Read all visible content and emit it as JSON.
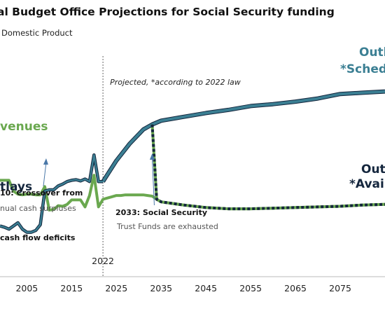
{
  "chart_data": {
    "type": "line",
    "title": "al Budget Office Projections for Social Security funding",
    "subtitle": "Domestic Product",
    "xlim": [
      1999,
      2085
    ],
    "ylim": [
      3.5,
      7.2
    ],
    "x_ticks": [
      "2005",
      "2015",
      "2025",
      "2035",
      "2045",
      "2055",
      "2065",
      "2075"
    ],
    "divider": {
      "x": 2022,
      "label": "2022",
      "note": "Projected, *according to 2022 law"
    },
    "series": [
      {
        "name": "venues",
        "color": "#6aa84f",
        "x": [
          1999,
          2000,
          2001,
          2002,
          2003,
          2004,
          2005,
          2006,
          2007,
          2008,
          2009,
          2010,
          2011,
          2012,
          2013,
          2014,
          2015,
          2016,
          2017,
          2018,
          2019,
          2020,
          2021,
          2022,
          2023,
          2024,
          2025,
          2026,
          2027,
          2028,
          2029,
          2030,
          2031,
          2032,
          2033,
          2034,
          2035,
          2040,
          2045,
          2050,
          2055,
          2060,
          2065,
          2070,
          2075,
          2080,
          2085
        ],
        "values": [
          5.02,
          5.02,
          5.02,
          4.85,
          4.8,
          4.79,
          4.8,
          4.8,
          4.79,
          4.79,
          4.92,
          4.55,
          4.56,
          4.62,
          4.61,
          4.64,
          4.71,
          4.71,
          4.71,
          4.6,
          4.78,
          5.1,
          4.6,
          4.72,
          4.74,
          4.76,
          4.78,
          4.78,
          4.79,
          4.79,
          4.79,
          4.79,
          4.79,
          4.78,
          4.77,
          4.72,
          4.68,
          4.63,
          4.59,
          4.57,
          4.57,
          4.58,
          4.59,
          4.6,
          4.61,
          4.63,
          4.64
        ]
      },
      {
        "name": "tlays",
        "color": "#3b7f93",
        "x": [
          1999,
          2000,
          2001,
          2002,
          2003,
          2004,
          2005,
          2006,
          2007,
          2008,
          2009,
          2010,
          2011,
          2012,
          2013,
          2014,
          2015,
          2016,
          2017,
          2018,
          2019,
          2020,
          2021,
          2022
        ],
        "values": [
          4.3,
          4.28,
          4.25,
          4.3,
          4.35,
          4.25,
          4.2,
          4.2,
          4.23,
          4.32,
          4.85,
          4.87,
          4.87,
          4.93,
          4.96,
          5.0,
          5.02,
          5.03,
          5.01,
          5.04,
          5.0,
          5.42,
          5.0,
          5.0
        ]
      },
      {
        "name": "Outla",
        "label_suffix": "*Schedu",
        "color": "#3b7f93",
        "x": [
          2022,
          2025,
          2028,
          2031,
          2033,
          2035,
          2040,
          2045,
          2050,
          2055,
          2060,
          2065,
          2070,
          2075,
          2080,
          2085
        ],
        "values": [
          5.0,
          5.33,
          5.6,
          5.82,
          5.9,
          5.96,
          6.02,
          6.08,
          6.13,
          6.19,
          6.22,
          6.26,
          6.31,
          6.38,
          6.4,
          6.42
        ]
      },
      {
        "name": "Outl",
        "label_suffix": "*Availa",
        "color": "#14263d",
        "x": [
          2033,
          2033.6,
          2034,
          2035,
          2040,
          2045,
          2050,
          2055,
          2060,
          2065,
          2070,
          2075,
          2080,
          2085
        ],
        "values": [
          5.9,
          5.2,
          4.72,
          4.68,
          4.63,
          4.59,
          4.57,
          4.57,
          4.58,
          4.59,
          4.6,
          4.61,
          4.63,
          4.64
        ]
      }
    ],
    "annotations": {
      "crossover": {
        "line1": "10: Crossover from",
        "line2": "nual cash surpluses",
        "line3": "cash flow deficits",
        "x": 2009
      },
      "exhaustion": {
        "line1": "2033: Social Security",
        "line2": "Trust Funds are exhausted",
        "x": 2033
      }
    }
  }
}
